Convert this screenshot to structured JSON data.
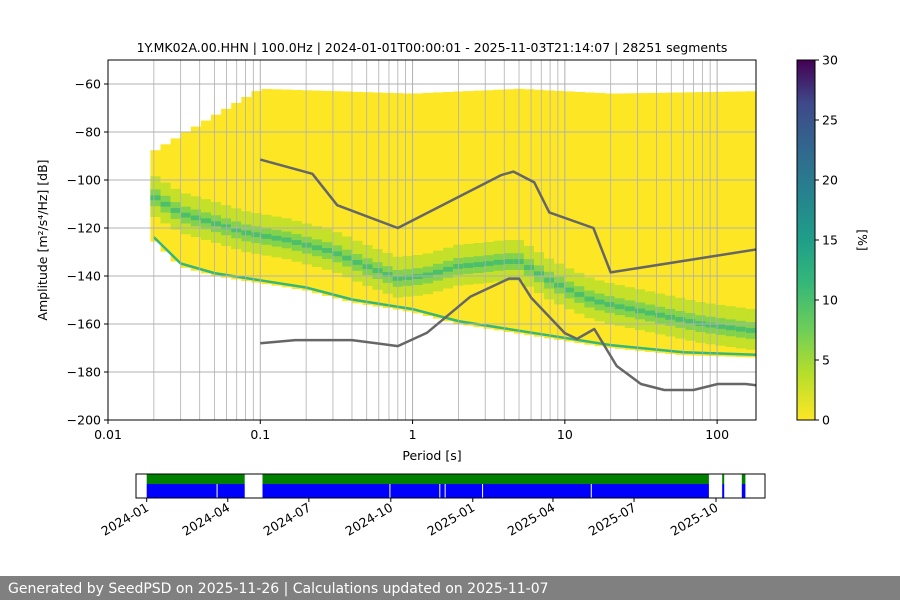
{
  "title": "1Y.MK02A.00.HHN | 100.0Hz | 2024-01-01T00:00:01 - 2025-11-03T21:14:07 | 28251 segments",
  "footer": "Generated by SeedPSD on 2025-11-26 | Calculations updated on 2025-11-07",
  "chart_data": [
    {
      "type": "heatmap",
      "title": "1Y.MK02A.00.HHN | 100.0Hz | 2024-01-01T00:00:01 - 2025-11-03T21:14:07 | 28251 segments",
      "xlabel": "Period [s]",
      "ylabel": "Amplitude [m²/s⁴/Hz] [dB]",
      "xscale": "log",
      "xlim": [
        0.01,
        180
      ],
      "ylim": [
        -200,
        -50
      ],
      "xticks": [
        0.01,
        0.1,
        1,
        10,
        100
      ],
      "xtick_labels": [
        "0.01",
        "0.1",
        "1",
        "10",
        "100"
      ],
      "yticks": [
        -200,
        -180,
        -160,
        -140,
        -120,
        -100,
        -80,
        -60
      ],
      "ytick_labels": [
        "−200",
        "−180",
        "−160",
        "−140",
        "−120",
        "−100",
        "−80",
        "−60"
      ],
      "grid": true,
      "colorbar": {
        "label": "[%]",
        "min": 0,
        "max": 30,
        "ticks": [
          0,
          5,
          10,
          15,
          20,
          25,
          30
        ],
        "colormap": "viridis_r"
      },
      "pdf_mode_curve": {
        "period": [
          0.02,
          0.03,
          0.05,
          0.08,
          0.15,
          0.3,
          0.5,
          0.8,
          1.2,
          2,
          3,
          4,
          5,
          6,
          8,
          10,
          15,
          20,
          40,
          80,
          180
        ],
        "db": [
          -107,
          -114,
          -118,
          -122,
          -125,
          -130,
          -136,
          -141,
          -140,
          -136,
          -135,
          -134,
          -134,
          -137,
          -142,
          -145,
          -150,
          -152,
          -156,
          -160,
          -163
        ]
      },
      "pdf_high_envelope": {
        "period": [
          0.02,
          0.1,
          1,
          5,
          20,
          180
        ],
        "db": [
          -88,
          -62,
          -64,
          -62,
          -64,
          -63
        ]
      },
      "pdf_low_envelope": {
        "period": [
          0.02,
          0.03,
          0.05,
          0.1,
          0.2,
          0.4,
          1,
          2,
          5,
          20,
          60,
          180
        ],
        "db": [
          -125,
          -136,
          -140,
          -143,
          -146,
          -151,
          -155,
          -160,
          -164,
          -170,
          -173,
          -174
        ]
      },
      "nhnm": {
        "period": [
          0.1,
          0.22,
          0.32,
          0.8,
          3.8,
          4.6,
          6.3,
          7.9,
          15.4,
          20,
          354.8
        ],
        "db": [
          -91.5,
          -97.4,
          -110.5,
          -120,
          -98,
          -96.5,
          -101,
          -113.5,
          -120,
          -138.5,
          -126
        ]
      },
      "nlnm": {
        "period": [
          0.1,
          0.17,
          0.4,
          0.8,
          1.24,
          2.4,
          4.3,
          5,
          6,
          10,
          12,
          15.6,
          21.9,
          31.6,
          45,
          70,
          101,
          154,
          328
        ],
        "db": [
          -168,
          -166.7,
          -166.7,
          -169.2,
          -163.7,
          -148.6,
          -141.1,
          -141.1,
          -149,
          -163.8,
          -166.2,
          -162.1,
          -177.5,
          -185,
          -187.5,
          -187.5,
          -185,
          -185,
          -187.5
        ]
      }
    },
    {
      "type": "bar",
      "xlabel": "",
      "xticks": [
        "2024-01",
        "2024-04",
        "2024-07",
        "2024-10",
        "2025-01",
        "2025-04",
        "2025-07",
        "2025-10"
      ],
      "xlim": [
        "2023-12-20",
        "2025-11-25"
      ],
      "data_coverage": [
        [
          "2024-01-01",
          "2024-04-20"
        ],
        [
          "2024-05-10",
          "2025-09-23"
        ],
        [
          "2025-10-08",
          "2025-10-10"
        ],
        [
          "2025-10-30",
          "2025-11-03"
        ]
      ],
      "gaps_in_coverage": [
        "2024-03-20",
        "2024-09-30",
        "2024-11-25",
        "2024-12-01",
        "2025-01-12",
        "2025-05-14"
      ],
      "colors": {
        "availability": "#008000",
        "coverage": "#0000ff"
      }
    }
  ]
}
